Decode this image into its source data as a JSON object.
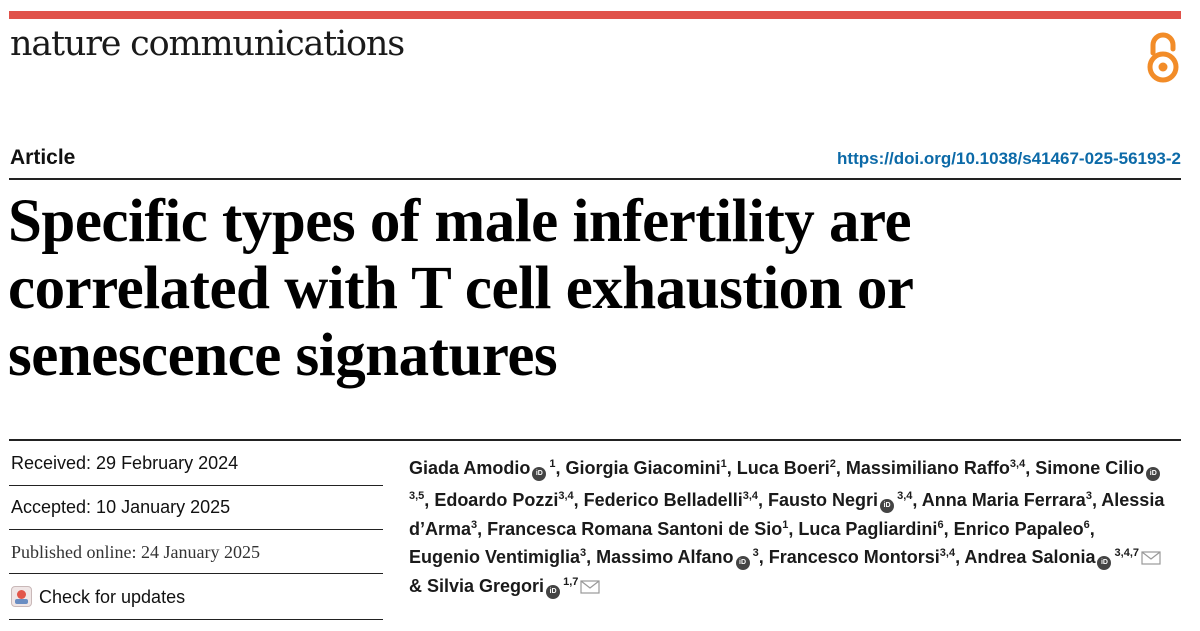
{
  "header": {
    "journal": "nature communications",
    "open_access_icon": "open-access-lock-icon",
    "accent_color": "#e0524a"
  },
  "article": {
    "type": "Article",
    "doi": "https://doi.org/10.1038/s41467-025-56193-2",
    "title": "Specific types of male infertility are correlated with T cell exhaustion or senescence signatures"
  },
  "dates": {
    "received": "Received: 29 February 2024",
    "accepted": "Accepted: 10 January 2025",
    "published": "Published online: 24 January 2025"
  },
  "updates": {
    "label": "Check for updates",
    "icon": "check-for-updates-icon"
  },
  "authors": [
    {
      "name": "Giada Amodio",
      "orcid": true,
      "aff": "1",
      "email": false
    },
    {
      "name": "Giorgia Giacomini",
      "orcid": false,
      "aff": "1",
      "email": false
    },
    {
      "name": "Luca Boeri",
      "orcid": false,
      "aff": "2",
      "email": false
    },
    {
      "name": "Massimiliano Raffo",
      "orcid": false,
      "aff": "3,4",
      "email": false
    },
    {
      "name": "Simone Cilio",
      "orcid": true,
      "aff": "3,5",
      "email": false
    },
    {
      "name": "Edoardo Pozzi",
      "orcid": false,
      "aff": "3,4",
      "email": false
    },
    {
      "name": "Federico Belladelli",
      "orcid": false,
      "aff": "3,4",
      "email": false
    },
    {
      "name": "Fausto Negri",
      "orcid": true,
      "aff": "3,4",
      "email": false
    },
    {
      "name": "Anna Maria Ferrara",
      "orcid": false,
      "aff": "3",
      "email": false
    },
    {
      "name": "Alessia d’Arma",
      "orcid": false,
      "aff": "3",
      "email": false
    },
    {
      "name": "Francesca Romana Santoni de Sio",
      "orcid": false,
      "aff": "1",
      "email": false
    },
    {
      "name": "Luca Pagliardini",
      "orcid": false,
      "aff": "6",
      "email": false
    },
    {
      "name": "Enrico Papaleo",
      "orcid": false,
      "aff": "6",
      "email": false
    },
    {
      "name": "Eugenio Ventimiglia",
      "orcid": false,
      "aff": "3",
      "email": false
    },
    {
      "name": "Massimo Alfano",
      "orcid": true,
      "aff": "3",
      "email": false
    },
    {
      "name": "Francesco Montorsi",
      "orcid": false,
      "aff": "3,4",
      "email": false
    },
    {
      "name": "Andrea Salonia",
      "orcid": true,
      "aff": "3,4,7",
      "email": true
    },
    {
      "name": "Silvia Gregori",
      "orcid": true,
      "aff": "1,7",
      "email": true
    }
  ],
  "author_separator": ", ",
  "author_last_separator": " & "
}
